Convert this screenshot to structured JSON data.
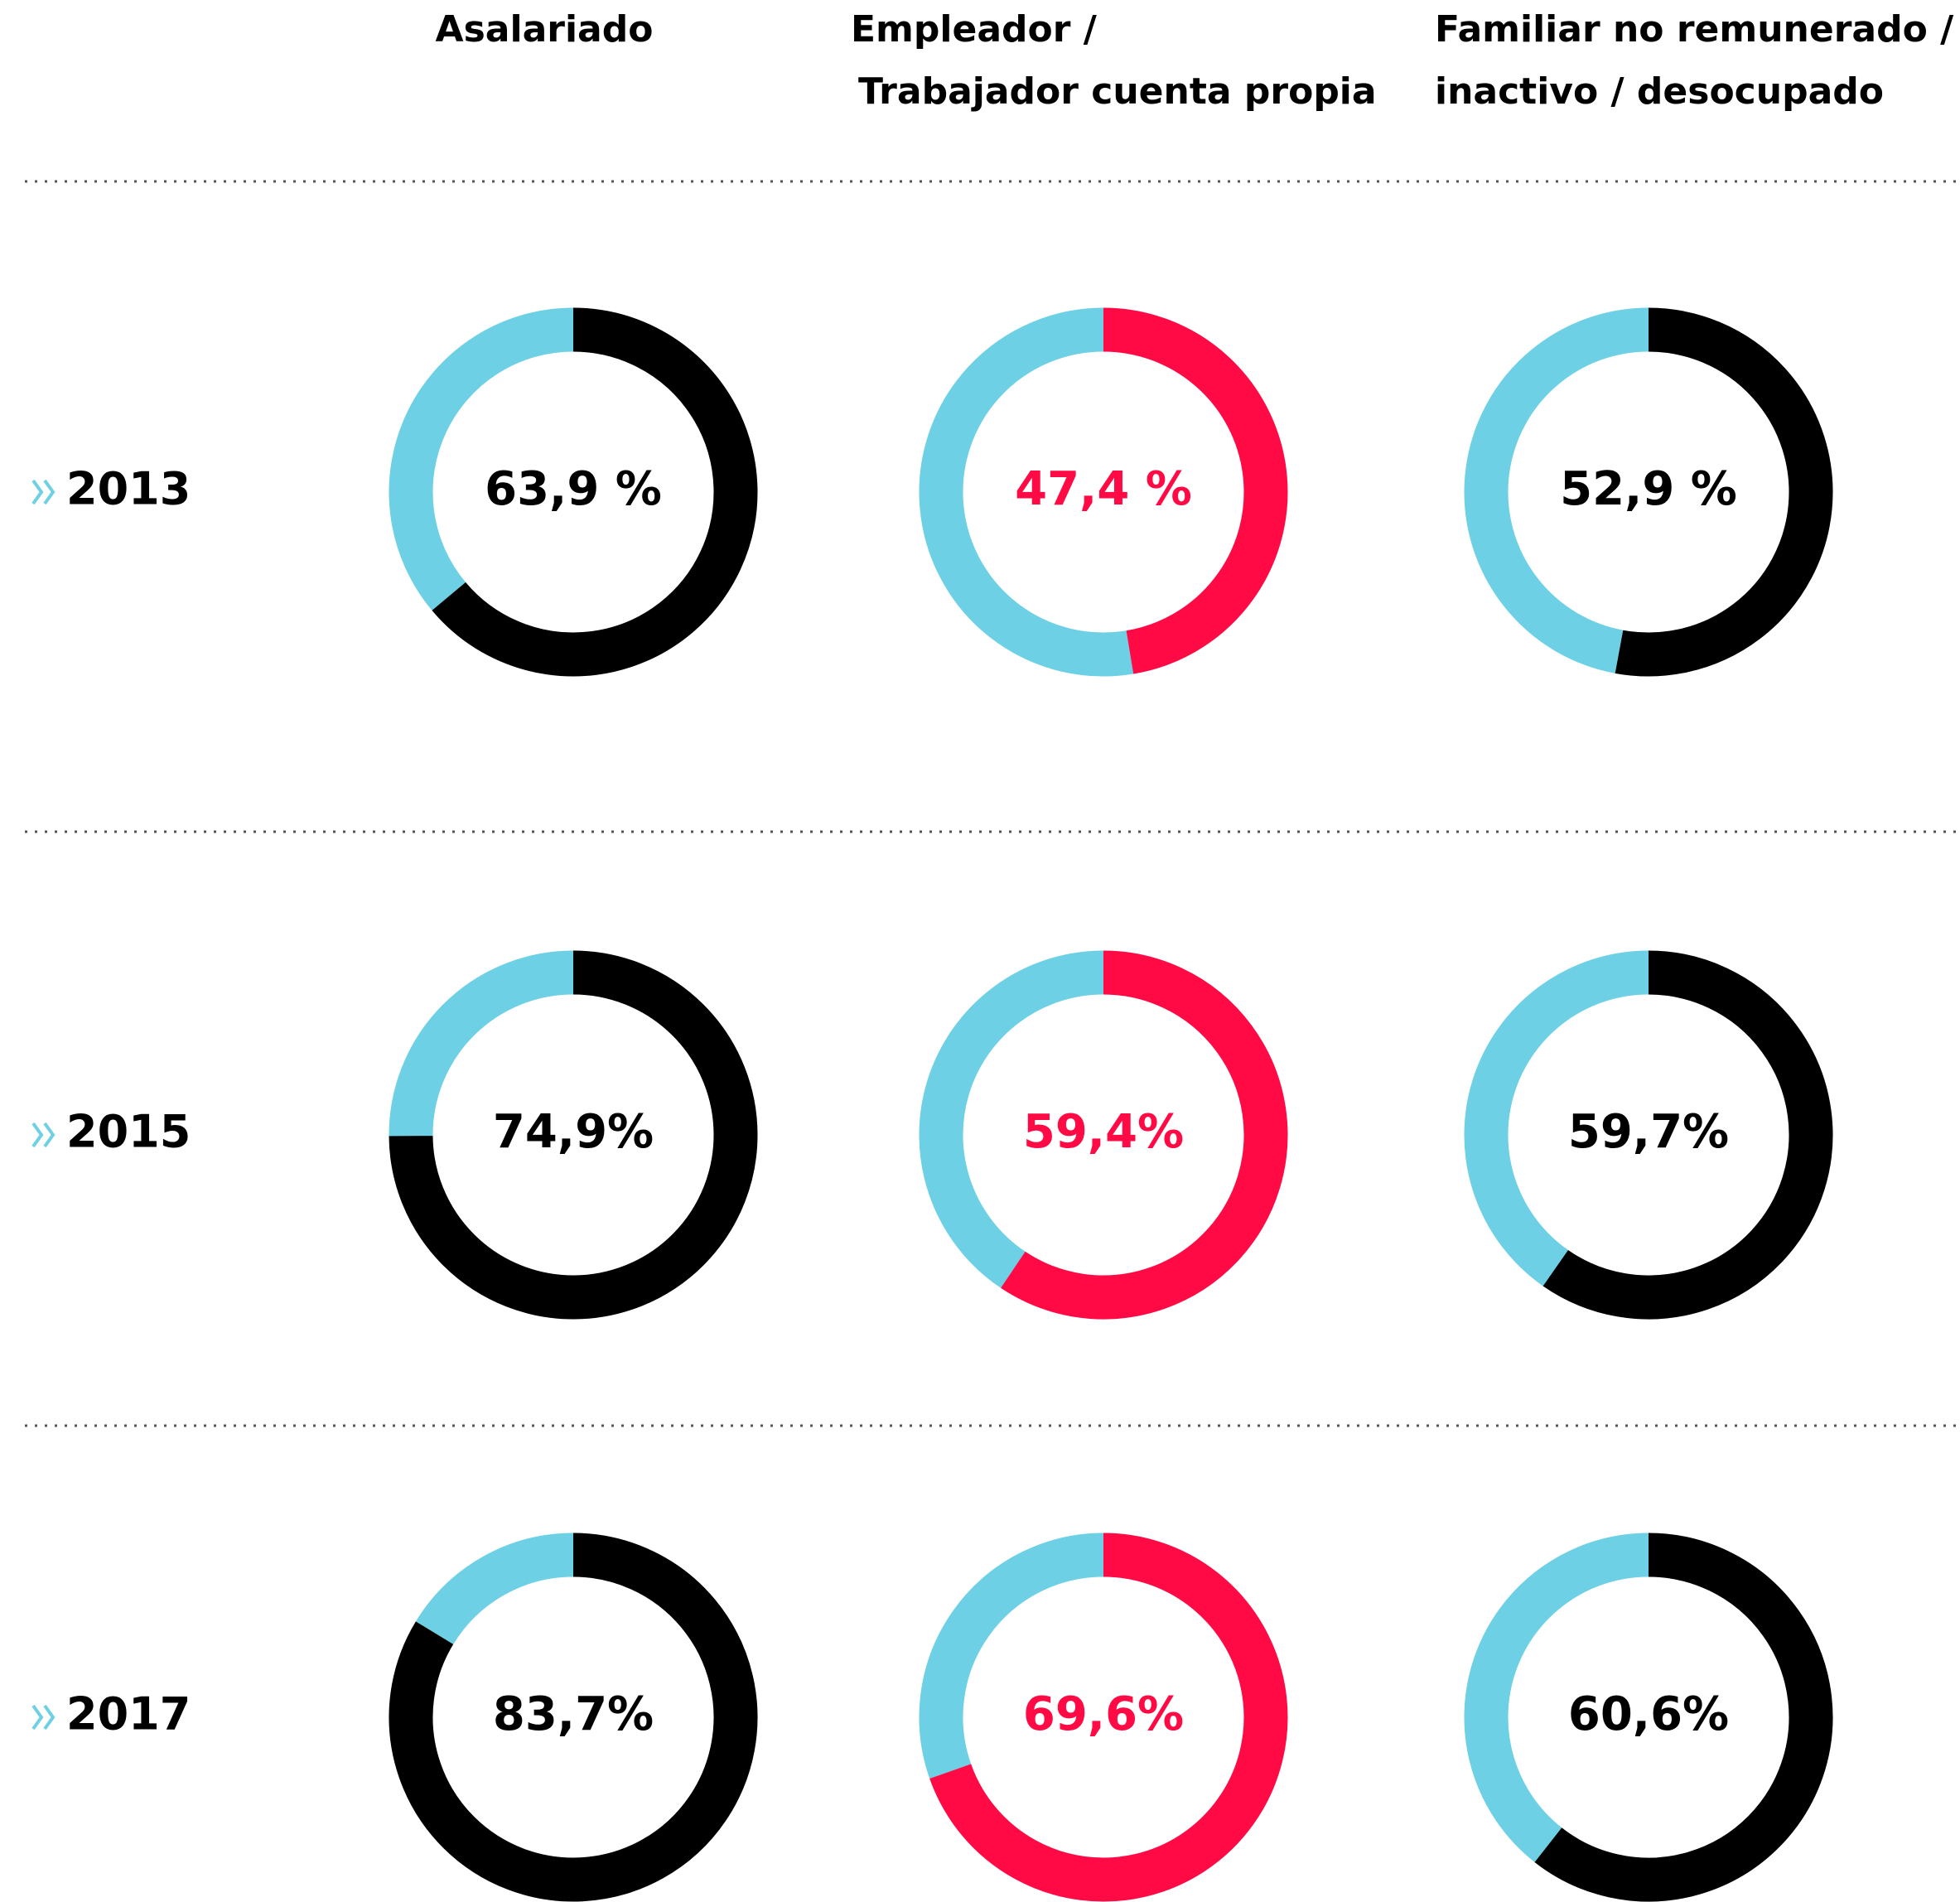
{
  "chart_data": {
    "type": "donut",
    "categories": [
      [
        "Asalariado"
      ],
      [
        "Empleador /",
        "Trabajador cuenta propia"
      ],
      [
        "Familiar no remunerado /",
        "inactivo / desocupado"
      ]
    ],
    "colors": [
      "#000000",
      "#ff0a45",
      "#000000"
    ],
    "remainder_color": "#6dd0e4",
    "series": [
      {
        "name": "2013",
        "values": [
          63.9,
          47.4,
          52.9
        ],
        "value_labels": [
          "63,9 %",
          "47,4 %",
          "52,9 %"
        ]
      },
      {
        "name": "2015",
        "values": [
          74.9,
          59.4,
          59.7
        ],
        "value_labels": [
          "74,9%",
          "59,4%",
          "59,7%"
        ]
      },
      {
        "name": "2017",
        "values": [
          83.7,
          69.6,
          60.6
        ],
        "value_labels": [
          "83,7%",
          "69,6%",
          "60,6%"
        ]
      }
    ]
  }
}
